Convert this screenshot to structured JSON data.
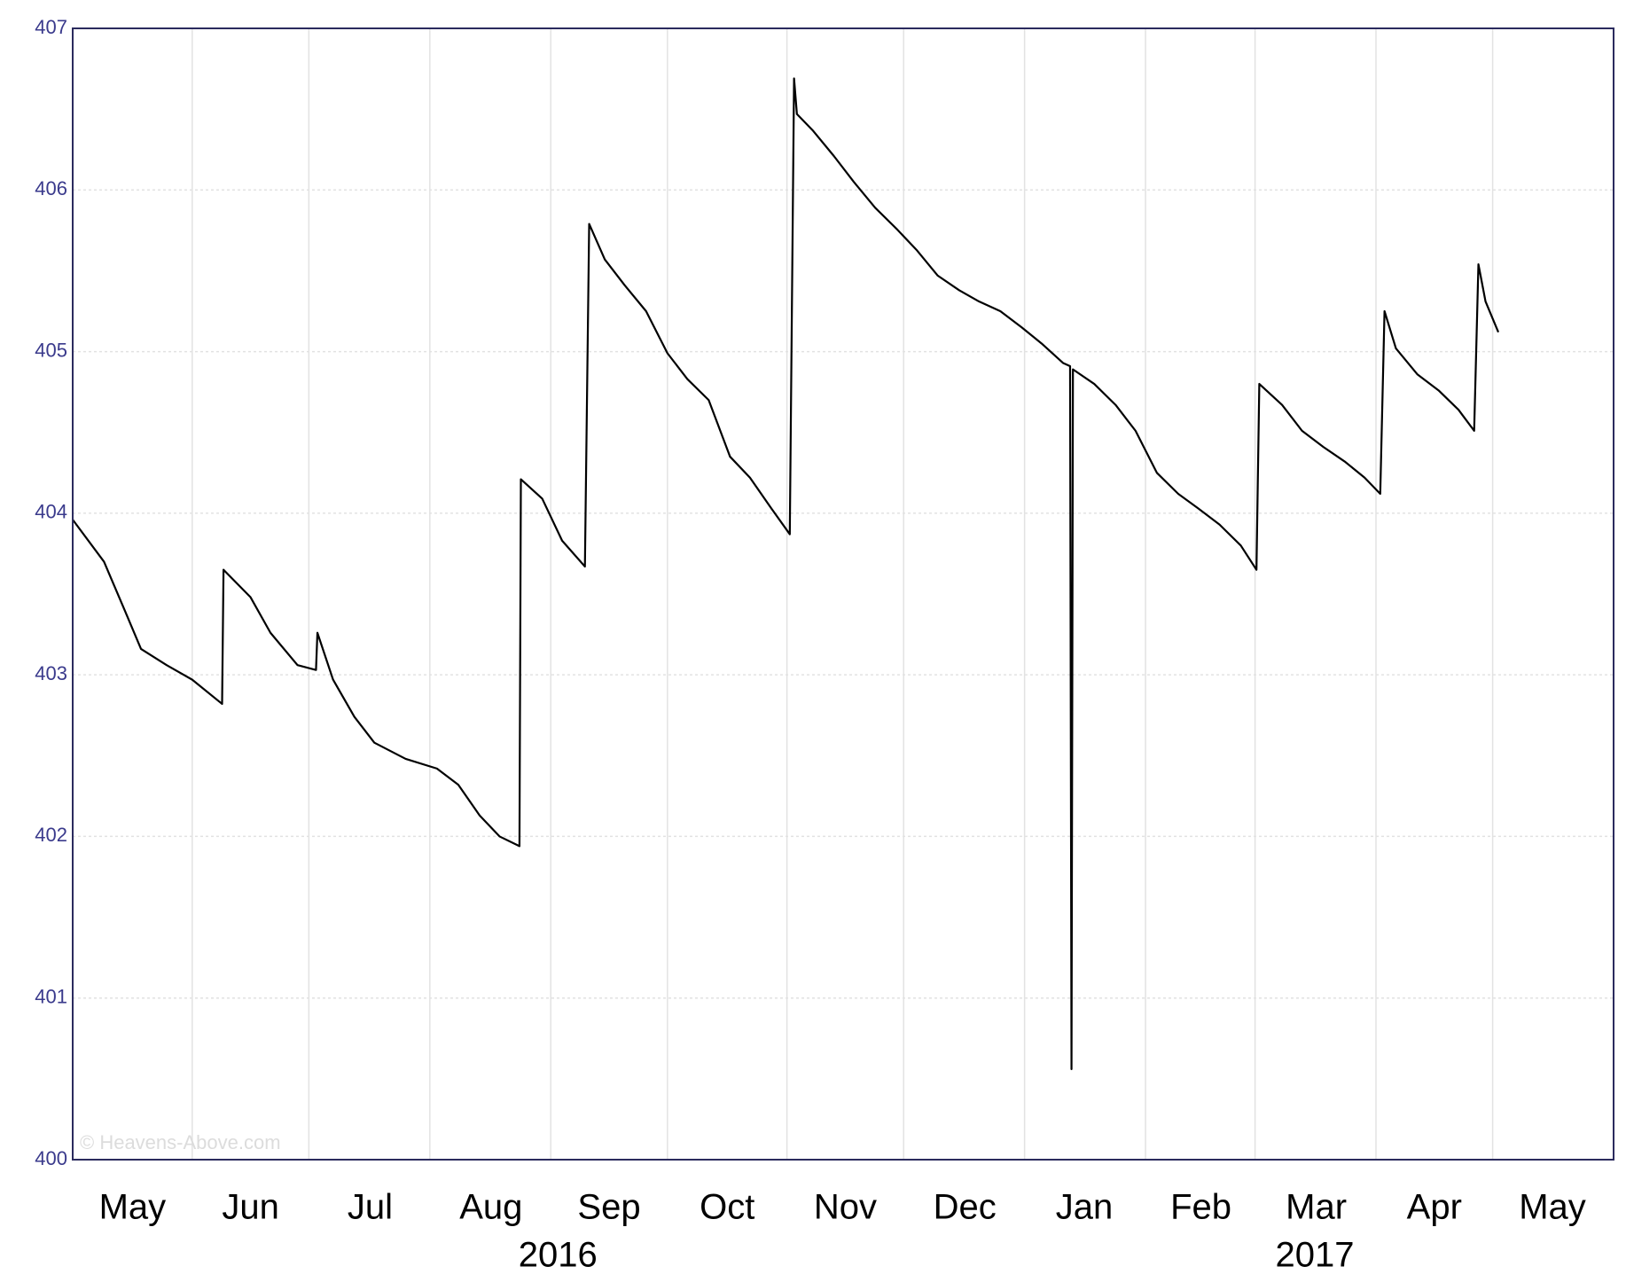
{
  "chart_data": {
    "type": "line",
    "watermark": "© Heavens-Above.com",
    "x": [
      2016.331,
      2016.353,
      2016.368,
      2016.379,
      2016.397,
      2016.415,
      2016.436,
      2016.437,
      2016.456,
      2016.47,
      2016.489,
      2016.502,
      2016.503,
      2016.514,
      2016.529,
      2016.543,
      2016.565,
      2016.587,
      2016.602,
      2016.617,
      2016.631,
      2016.645,
      2016.646,
      2016.661,
      2016.675,
      2016.691,
      2016.694,
      2016.705,
      2016.719,
      2016.734,
      2016.749,
      2016.763,
      2016.778,
      2016.793,
      2016.807,
      2016.822,
      2016.835,
      2016.838,
      2016.84,
      2016.851,
      2016.866,
      2016.88,
      2016.895,
      2016.91,
      2016.924,
      2016.939,
      2016.954,
      2016.968,
      2016.983,
      2016.998,
      2017.012,
      2017.027,
      2017.032,
      2017.033,
      2017.034,
      2017.049,
      2017.064,
      2017.078,
      2017.093,
      2017.108,
      2017.122,
      2017.137,
      2017.152,
      2017.163,
      2017.165,
      2017.181,
      2017.195,
      2017.21,
      2017.225,
      2017.239,
      2017.25,
      2017.253,
      2017.261,
      2017.276,
      2017.291,
      2017.305,
      2017.316,
      2017.319,
      2017.324,
      2017.333
    ],
    "series": [
      {
        "color": "#000000",
        "values": [
          403.96,
          403.7,
          403.39,
          403.16,
          403.06,
          402.97,
          402.82,
          403.65,
          403.48,
          403.26,
          403.06,
          403.03,
          403.26,
          402.97,
          402.74,
          402.58,
          402.48,
          402.42,
          402.32,
          402.13,
          402.0,
          401.94,
          404.21,
          404.09,
          403.83,
          403.67,
          405.79,
          405.57,
          405.41,
          405.25,
          404.99,
          404.83,
          404.7,
          404.35,
          404.22,
          404.03,
          403.87,
          406.69,
          406.47,
          406.37,
          406.21,
          406.05,
          405.89,
          405.76,
          405.63,
          405.47,
          405.38,
          405.31,
          405.25,
          405.15,
          405.05,
          404.93,
          404.91,
          400.56,
          404.89,
          404.8,
          404.67,
          404.51,
          404.25,
          404.12,
          404.03,
          403.93,
          403.8,
          403.65,
          404.8,
          404.67,
          404.51,
          404.41,
          404.32,
          404.22,
          404.12,
          405.25,
          405.02,
          404.86,
          404.76,
          404.64,
          404.51,
          405.54,
          405.31,
          405.12
        ]
      }
    ],
    "xlim": [
      2016.331,
      2017.414
    ],
    "ylim": [
      400,
      407
    ],
    "yticks": [
      400,
      401,
      402,
      403,
      404,
      405,
      406,
      407
    ],
    "xgrid": [
      2016.415,
      2016.497,
      2016.582,
      2016.667,
      2016.749,
      2016.833,
      2016.915,
      2017.0,
      2017.085,
      2017.162,
      2017.247,
      2017.329
    ],
    "xticks": [
      {
        "value": 2016.373,
        "label": "May"
      },
      {
        "value": 2016.456,
        "label": "Jun"
      },
      {
        "value": 2016.54,
        "label": "Jul"
      },
      {
        "value": 2016.625,
        "label": "Aug"
      },
      {
        "value": 2016.708,
        "label": "Sep"
      },
      {
        "value": 2016.791,
        "label": "Oct"
      },
      {
        "value": 2016.874,
        "label": "Nov"
      },
      {
        "value": 2016.958,
        "label": "Dec"
      },
      {
        "value": 2017.042,
        "label": "Jan"
      },
      {
        "value": 2017.124,
        "label": "Feb"
      },
      {
        "value": 2017.205,
        "label": "Mar"
      },
      {
        "value": 2017.288,
        "label": "Apr"
      },
      {
        "value": 2017.371,
        "label": "May"
      }
    ],
    "year_labels": [
      {
        "value": 2016.672,
        "label": "2016"
      },
      {
        "value": 2017.204,
        "label": "2017"
      }
    ],
    "grid": true
  }
}
